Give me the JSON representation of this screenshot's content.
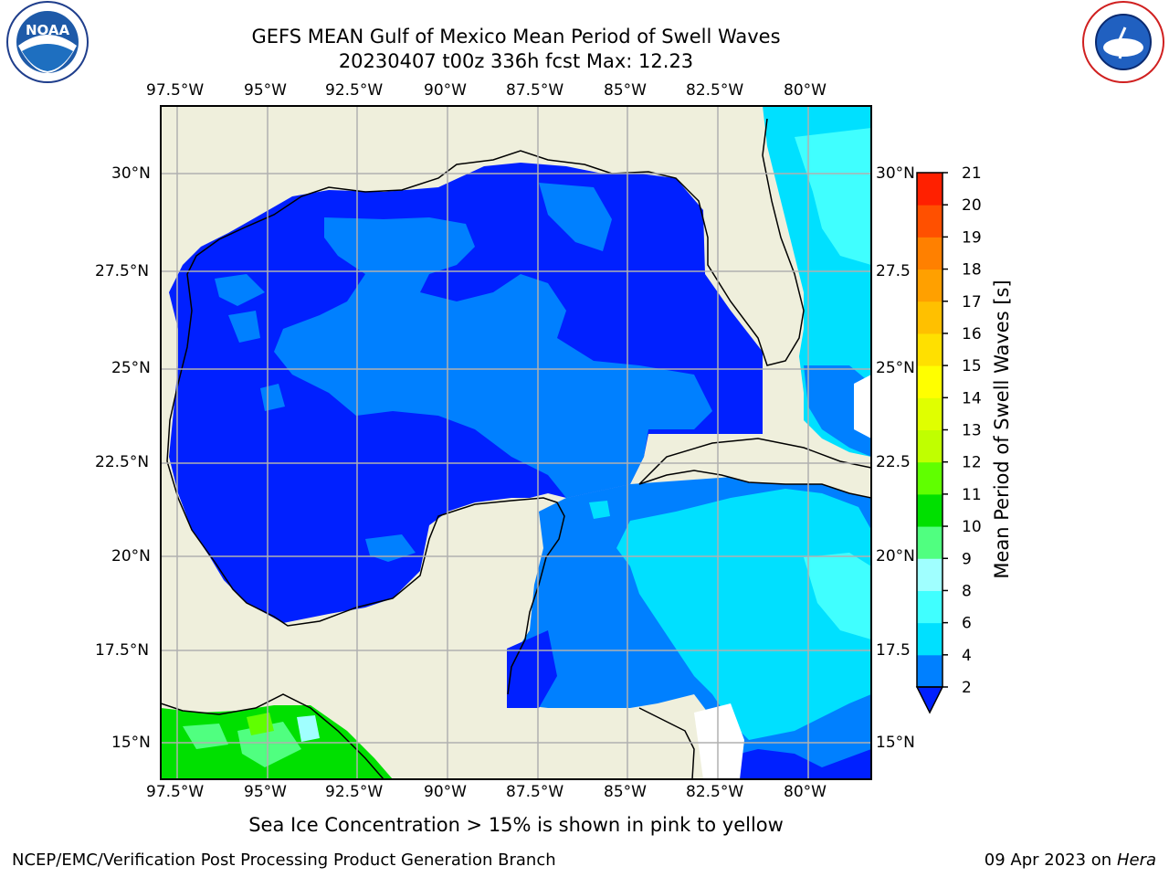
{
  "title": "GEFS MEAN Gulf of Mexico Mean Period of Swell Waves",
  "subtitle": "20230407 t00z 336h fcst   Max: 12.23",
  "logos": {
    "left": "NOAA",
    "right": "NATIONAL WEATHER SERVICE"
  },
  "longitudes": [
    "97.5°W",
    "95°W",
    "92.5°W",
    "90°W",
    "87.5°W",
    "85°W",
    "82.5°W",
    "80°W"
  ],
  "latitudes_left": [
    "30°N",
    "27.5°N",
    "25°N",
    "22.5°N",
    "20°N",
    "17.5°N",
    "15°N"
  ],
  "latitudes_right": [
    "30°N",
    "27.5",
    "25°N",
    "22.5",
    "20°N",
    "17.5",
    "15°N"
  ],
  "colorbar": {
    "label": "Mean Period of Swell Waves [s]",
    "ticks": [
      "2",
      "4",
      "6",
      "8",
      "9",
      "10",
      "11",
      "12",
      "13",
      "14",
      "15",
      "16",
      "17",
      "18",
      "19",
      "20",
      "21"
    ],
    "colors": [
      "#0080ff",
      "#00e0ff",
      "#40ffff",
      "#a0ffff",
      "#50ff80",
      "#00e000",
      "#60ff00",
      "#c0ff00",
      "#e0ff00",
      "#ffff00",
      "#ffe000",
      "#ffc000",
      "#ffa000",
      "#ff8000",
      "#ff5000",
      "#ff2000"
    ],
    "under_color": "#0020ff"
  },
  "colors": {
    "land": "#efefdc",
    "ocean_low": "#0020ff",
    "ocean_mid": "#0080ff",
    "ocean_high": "#00e0ff",
    "ocean_higher": "#40ffff",
    "green": "#00e000"
  },
  "note": "Sea Ice Concentration > 15% is shown in pink to yellow",
  "footer_left": "NCEP/EMC/Verification Post Processing Product Generation Branch",
  "footer_right_date": "09 Apr 2023 on ",
  "footer_right_host": "Hera"
}
